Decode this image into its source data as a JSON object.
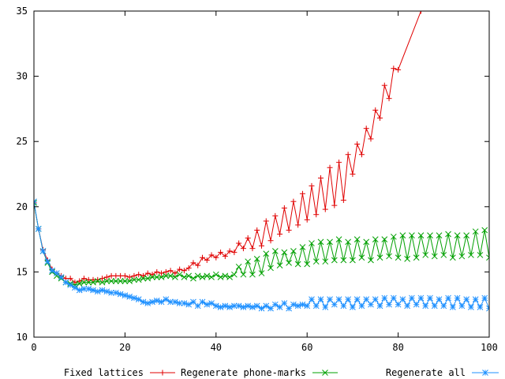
{
  "chart_data": {
    "type": "line",
    "title": "",
    "xlabel": "",
    "ylabel": "",
    "xlim": [
      0,
      100
    ],
    "ylim": [
      10,
      35
    ],
    "xticks": [
      0,
      20,
      40,
      60,
      80,
      100
    ],
    "yticks": [
      10,
      15,
      20,
      25,
      30,
      35
    ],
    "grid": false,
    "legend_position": "bottom",
    "series": [
      {
        "name": "Fixed lattices",
        "color": "#e00000",
        "marker": "plus",
        "x": [
          0,
          1,
          2,
          3,
          4,
          5,
          6,
          7,
          8,
          9,
          10,
          11,
          12,
          13,
          14,
          15,
          16,
          17,
          18,
          19,
          20,
          21,
          22,
          23,
          24,
          25,
          26,
          27,
          28,
          29,
          30,
          31,
          32,
          33,
          34,
          35,
          36,
          37,
          38,
          39,
          40,
          41,
          42,
          43,
          44,
          45,
          46,
          47,
          48,
          49,
          50,
          51,
          52,
          53,
          54,
          55,
          56,
          57,
          58,
          59,
          60,
          61,
          62,
          63,
          64,
          65,
          66,
          67,
          68,
          69,
          70,
          71,
          72,
          73,
          74,
          75,
          76,
          77,
          78,
          79,
          80,
          85
        ],
        "values": [
          20.3,
          18.3,
          16.7,
          15.9,
          15.2,
          14.9,
          14.7,
          14.5,
          14.5,
          14.2,
          14.3,
          14.5,
          14.4,
          14.4,
          14.4,
          14.5,
          14.6,
          14.7,
          14.7,
          14.7,
          14.7,
          14.6,
          14.7,
          14.8,
          14.7,
          14.9,
          14.8,
          15.0,
          14.9,
          15.0,
          15.1,
          14.9,
          15.2,
          15.1,
          15.3,
          15.7,
          15.5,
          16.1,
          15.9,
          16.3,
          16.1,
          16.5,
          16.2,
          16.6,
          16.5,
          17.2,
          16.8,
          17.6,
          16.8,
          18.2,
          17.0,
          18.9,
          17.4,
          19.3,
          17.9,
          19.9,
          18.2,
          20.4,
          18.6,
          21.0,
          19.0,
          21.6,
          19.4,
          22.2,
          19.8,
          23.0,
          20.1,
          23.4,
          20.5,
          24.0,
          22.5,
          24.8,
          24.0,
          26.0,
          25.2,
          27.4,
          26.8,
          29.3,
          28.3,
          30.6,
          30.5,
          35.0
        ]
      },
      {
        "name": "Regenerate phone-marks",
        "color": "#00a000",
        "marker": "x",
        "x": [
          0,
          1,
          2,
          3,
          4,
          5,
          6,
          7,
          8,
          9,
          10,
          11,
          12,
          13,
          14,
          15,
          16,
          17,
          18,
          19,
          20,
          21,
          22,
          23,
          24,
          25,
          26,
          27,
          28,
          29,
          30,
          31,
          32,
          33,
          34,
          35,
          36,
          37,
          38,
          39,
          40,
          41,
          42,
          43,
          44,
          45,
          46,
          47,
          48,
          49,
          50,
          51,
          52,
          53,
          54,
          55,
          56,
          57,
          58,
          59,
          60,
          61,
          62,
          63,
          64,
          65,
          66,
          67,
          68,
          69,
          70,
          71,
          72,
          73,
          74,
          75,
          76,
          77,
          78,
          79,
          80,
          81,
          82,
          83,
          84,
          85,
          86,
          87,
          88,
          89,
          90,
          91,
          92,
          93,
          94,
          95,
          96,
          97,
          98,
          99,
          100
        ],
        "values": [
          20.3,
          18.3,
          16.6,
          15.7,
          15.0,
          14.7,
          14.5,
          14.2,
          14.1,
          14.0,
          14.1,
          14.2,
          14.2,
          14.2,
          14.3,
          14.2,
          14.3,
          14.3,
          14.3,
          14.3,
          14.3,
          14.3,
          14.4,
          14.4,
          14.5,
          14.5,
          14.6,
          14.6,
          14.6,
          14.7,
          14.7,
          14.6,
          14.8,
          14.6,
          14.7,
          14.5,
          14.7,
          14.6,
          14.7,
          14.6,
          14.8,
          14.6,
          14.7,
          14.6,
          14.8,
          15.4,
          14.8,
          15.8,
          14.8,
          16.0,
          14.9,
          16.4,
          15.3,
          16.6,
          15.5,
          16.5,
          15.7,
          16.6,
          15.6,
          16.9,
          15.6,
          17.2,
          15.8,
          17.3,
          15.8,
          17.3,
          15.9,
          17.5,
          15.9,
          17.3,
          15.9,
          17.5,
          16.1,
          17.3,
          15.9,
          17.5,
          16.1,
          17.5,
          16.2,
          17.7,
          16.1,
          17.8,
          16.0,
          17.8,
          16.1,
          17.8,
          16.3,
          17.8,
          16.2,
          17.8,
          16.3,
          17.9,
          16.1,
          17.8,
          16.2,
          17.8,
          16.3,
          18.1,
          16.3,
          18.2,
          16.1
        ]
      },
      {
        "name": "Regenerate all",
        "color": "#1e90ff",
        "marker": "star",
        "x": [
          0,
          1,
          2,
          3,
          4,
          5,
          6,
          7,
          8,
          9,
          10,
          11,
          12,
          13,
          14,
          15,
          16,
          17,
          18,
          19,
          20,
          21,
          22,
          23,
          24,
          25,
          26,
          27,
          28,
          29,
          30,
          31,
          32,
          33,
          34,
          35,
          36,
          37,
          38,
          39,
          40,
          41,
          42,
          43,
          44,
          45,
          46,
          47,
          48,
          49,
          50,
          51,
          52,
          53,
          54,
          55,
          56,
          57,
          58,
          59,
          60,
          61,
          62,
          63,
          64,
          65,
          66,
          67,
          68,
          69,
          70,
          71,
          72,
          73,
          74,
          75,
          76,
          77,
          78,
          79,
          80,
          81,
          82,
          83,
          84,
          85,
          86,
          87,
          88,
          89,
          90,
          91,
          92,
          93,
          94,
          95,
          96,
          97,
          98,
          99,
          100
        ],
        "values": [
          20.4,
          18.3,
          16.6,
          15.8,
          15.1,
          14.9,
          14.6,
          14.2,
          14.0,
          13.8,
          13.6,
          13.7,
          13.7,
          13.6,
          13.5,
          13.6,
          13.5,
          13.4,
          13.4,
          13.3,
          13.2,
          13.1,
          13.0,
          12.9,
          12.7,
          12.6,
          12.7,
          12.8,
          12.7,
          12.9,
          12.7,
          12.7,
          12.6,
          12.6,
          12.5,
          12.7,
          12.4,
          12.7,
          12.5,
          12.6,
          12.4,
          12.3,
          12.4,
          12.3,
          12.4,
          12.4,
          12.3,
          12.4,
          12.3,
          12.4,
          12.2,
          12.4,
          12.2,
          12.5,
          12.3,
          12.6,
          12.2,
          12.5,
          12.4,
          12.5,
          12.4,
          12.9,
          12.4,
          12.9,
          12.3,
          12.9,
          12.5,
          12.9,
          12.4,
          12.9,
          12.3,
          12.9,
          12.4,
          12.9,
          12.5,
          12.9,
          12.4,
          13.0,
          12.5,
          13.0,
          12.5,
          12.9,
          12.4,
          13.0,
          12.5,
          13.0,
          12.4,
          13.0,
          12.4,
          12.9,
          12.4,
          13.0,
          12.3,
          13.0,
          12.4,
          12.9,
          12.3,
          12.9,
          12.3,
          13.0,
          12.2
        ]
      }
    ]
  }
}
